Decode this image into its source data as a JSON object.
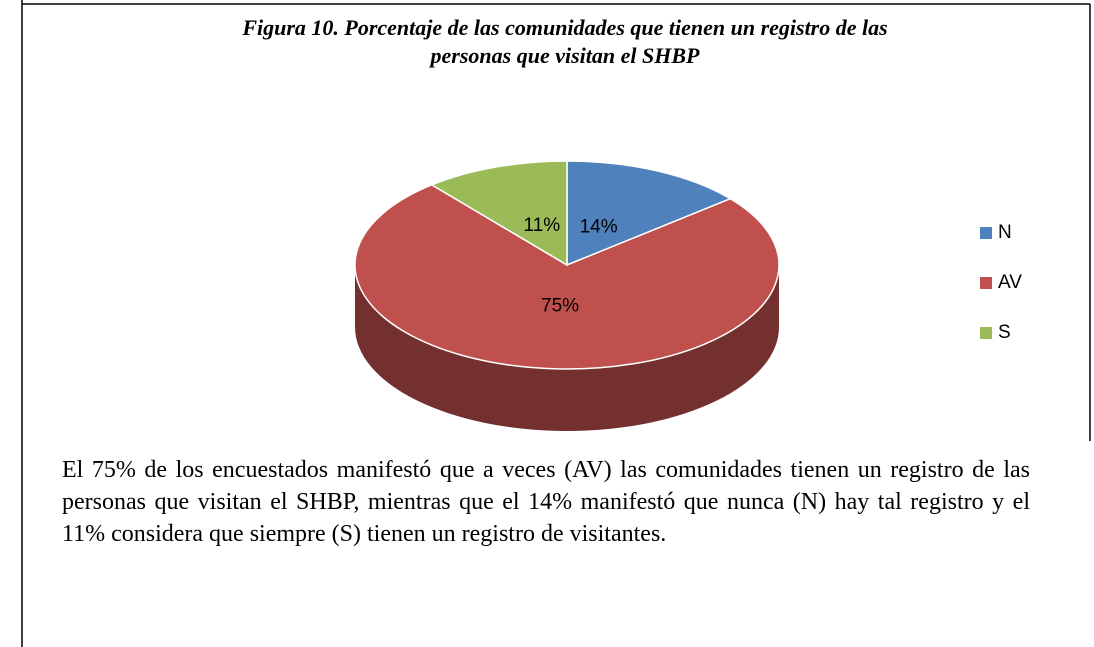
{
  "chart_data": {
    "type": "pie",
    "title": "Figura 10. Porcentaje de las comunidades que tienen un registro de las personas que visitan el SHBP",
    "categories": [
      "N",
      "AV",
      "S"
    ],
    "values": [
      14,
      75,
      11
    ],
    "value_labels": [
      "14%",
      "75%",
      "11%"
    ],
    "colors": [
      "#4f81bd",
      "#c0504d",
      "#9bbb59"
    ],
    "legend": "right"
  },
  "paragraph": "El 75% de los encuestados manifestó que a veces (AV) las comunidades tienen un registro de las personas que visitan el SHBP, mientras que el 14% manifestó que nunca (N) hay tal registro y el 11% considera que siempre (S) tienen un registro de visitantes."
}
